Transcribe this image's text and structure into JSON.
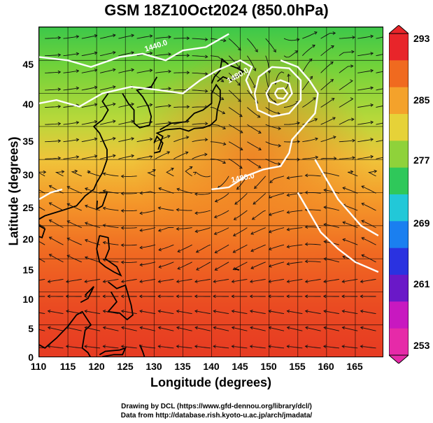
{
  "title": "GSM 18Z10Oct2024 (850.0hPa)",
  "x_axis": {
    "label": "Longitude (degrees)",
    "ticks": [
      "110",
      "115",
      "120",
      "125",
      "130",
      "135",
      "140",
      "145",
      "150",
      "155",
      "160",
      "165"
    ]
  },
  "y_axis": {
    "label": "Latitude  (degrees)",
    "ticks": [
      "45",
      "40",
      "35",
      "30",
      "25",
      "20",
      "15",
      "10",
      "5",
      "0"
    ]
  },
  "colorbar": {
    "labels": [
      "293",
      "285",
      "277",
      "269",
      "261",
      "253"
    ],
    "colors": [
      "#e8252a",
      "#f06a1f",
      "#f4a22b",
      "#e6d238",
      "#8fd23a",
      "#2fc85a",
      "#22c8d8",
      "#1a7ff0",
      "#2a32e0",
      "#6a18c8",
      "#c818c0",
      "#e62aa8"
    ]
  },
  "contour_labels": [
    "1440.0",
    "1480.0",
    "1480.0"
  ],
  "credits": {
    "line1": "Drawing by DCL (https://www.gfd-dennou.org/library/dcl/)",
    "line2": "Data from http://database.rish.kyoto-u.ac.jp/arch/jmadata/"
  },
  "chart_data": {
    "type": "heatmap",
    "title": "GSM 18Z10Oct2024 (850.0hPa)",
    "xlabel": "Longitude (degrees)",
    "ylabel": "Latitude  (degrees)",
    "xlim": [
      110,
      170
    ],
    "ylim": [
      0,
      50
    ],
    "color_scale": {
      "min": 253,
      "max": 293,
      "ticks": [
        293,
        285,
        277,
        269,
        261,
        253
      ]
    },
    "contours": [
      {
        "label": "1440.0"
      },
      {
        "label": "1480.0"
      },
      {
        "label": "1480.0"
      }
    ]
  }
}
